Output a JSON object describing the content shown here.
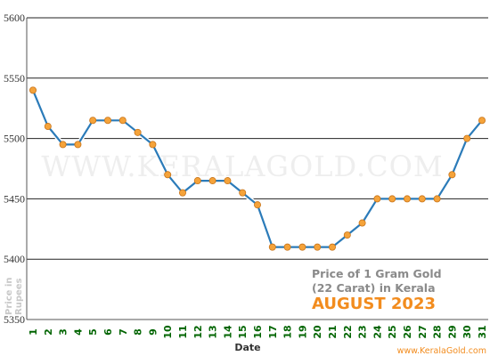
{
  "chart_data": {
    "type": "line",
    "watermark": "WWW.KERALAGOLD.COM",
    "info": {
      "line1": "Price of 1 Gram Gold",
      "line2": "(22 Carat) in Kerala",
      "line3": "AUGUST 2023"
    },
    "xlabel": "Date",
    "ylabel_line1": "Price in",
    "ylabel_line2": "Rupees",
    "source": "www.KeralaGold.com",
    "ylim": [
      5350,
      5600
    ],
    "yticks": [
      5350,
      5400,
      5450,
      5500,
      5550,
      5600
    ],
    "grid": true,
    "x": [
      "1",
      "2",
      "3",
      "4",
      "5",
      "6",
      "7",
      "8",
      "9",
      "10",
      "11",
      "12",
      "13",
      "14",
      "15",
      "16",
      "17",
      "18",
      "19",
      "20",
      "21",
      "22",
      "23",
      "24",
      "25",
      "26",
      "27",
      "28",
      "29",
      "30",
      "31"
    ],
    "values": [
      5540,
      5510,
      5495,
      5495,
      5515,
      5515,
      5515,
      5505,
      5495,
      5470,
      5455,
      5465,
      5465,
      5465,
      5455,
      5445,
      5410,
      5410,
      5410,
      5410,
      5410,
      5420,
      5430,
      5450,
      5450,
      5450,
      5450,
      5450,
      5470,
      5500,
      5515
    ],
    "colors": {
      "line": "#2b7bb9",
      "marker": "#f5a33a",
      "marker_stroke": "#c8741a",
      "x_tick": "#006400",
      "accent": "#f28c1e"
    }
  }
}
